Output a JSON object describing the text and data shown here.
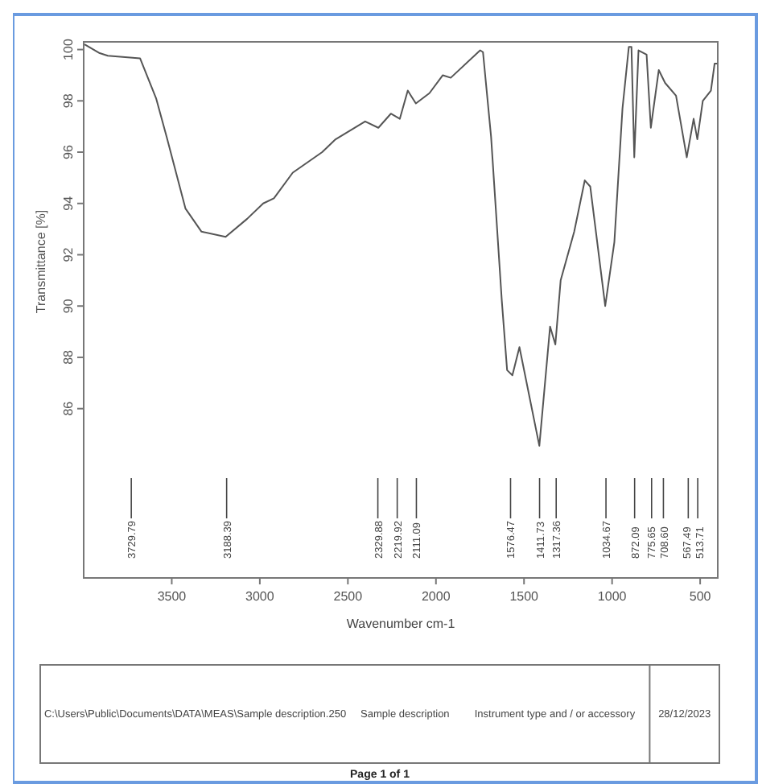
{
  "chart_data": {
    "type": "line",
    "xlabel": "Wavenumber cm-1",
    "ylabel": "Transmittance [%]",
    "xlim": [
      4000,
      400
    ],
    "ylim": [
      79.4,
      100.3
    ],
    "xticks": [
      3500,
      3000,
      2500,
      2000,
      1500,
      1000,
      500
    ],
    "yticks": [
      86,
      88,
      90,
      92,
      94,
      96,
      98,
      100
    ],
    "grid": false,
    "series": [
      {
        "color": "#555555",
        "x": [
          3995,
          3909,
          3863,
          3680,
          3589,
          3529,
          3422,
          3331,
          3194,
          3072,
          2981,
          2920,
          2813,
          2646,
          2570,
          2402,
          2327,
          2256,
          2205,
          2160,
          2114,
          2037,
          1961,
          1916,
          1749,
          1733,
          1687,
          1626,
          1596,
          1566,
          1526,
          1413,
          1352,
          1322,
          1292,
          1215,
          1155,
          1124,
          1039,
          987,
          941,
          905,
          890,
          874,
          850,
          804,
          780,
          735,
          699,
          637,
          576,
          537,
          516,
          485,
          439,
          418,
          403
        ],
        "values": [
          100.2,
          99.86,
          99.76,
          99.66,
          98.1,
          96.6,
          93.8,
          92.9,
          92.7,
          93.4,
          94.0,
          94.2,
          95.2,
          96.0,
          96.5,
          97.2,
          96.95,
          97.5,
          97.3,
          98.4,
          97.9,
          98.3,
          99.0,
          98.9,
          99.97,
          99.9,
          96.6,
          90.2,
          87.5,
          87.3,
          88.4,
          84.55,
          89.2,
          88.5,
          91.0,
          92.9,
          94.9,
          94.66,
          90.0,
          92.5,
          97.7,
          100.1,
          100.1,
          95.8,
          99.97,
          99.8,
          96.95,
          99.2,
          98.7,
          98.2,
          95.8,
          97.3,
          96.5,
          98.0,
          98.4,
          99.45,
          99.45
        ]
      }
    ],
    "ref_lines": [
      {
        "axis": "x",
        "value": 3729.79,
        "label": "3729.79"
      },
      {
        "axis": "x",
        "value": 3188.39,
        "label": "3188.39"
      },
      {
        "axis": "x",
        "value": 2329.88,
        "label": "2329.88"
      },
      {
        "axis": "x",
        "value": 2219.92,
        "label": "2219.92"
      },
      {
        "axis": "x",
        "value": 2111.09,
        "label": "2111.09"
      },
      {
        "axis": "x",
        "value": 1576.47,
        "label": "1576.47"
      },
      {
        "axis": "x",
        "value": 1411.73,
        "label": "1411.73"
      },
      {
        "axis": "x",
        "value": 1317.36,
        "label": "1317.36"
      },
      {
        "axis": "x",
        "value": 1034.67,
        "label": "1034.67"
      },
      {
        "axis": "x",
        "value": 872.09,
        "label": "872.09"
      },
      {
        "axis": "x",
        "value": 775.65,
        "label": "775.65"
      },
      {
        "axis": "x",
        "value": 708.6,
        "label": "708.60"
      },
      {
        "axis": "x",
        "value": 567.49,
        "label": "567.49"
      },
      {
        "axis": "x",
        "value": 513.71,
        "label": "513.71"
      }
    ],
    "annotations": [
      "C:\\Users\\Public\\Documents\\DATA\\MEAS\\Sample description.250",
      "Sample description",
      "Instrument type and / or accessory",
      "28/12/2023",
      "Page 1 of 1"
    ]
  }
}
